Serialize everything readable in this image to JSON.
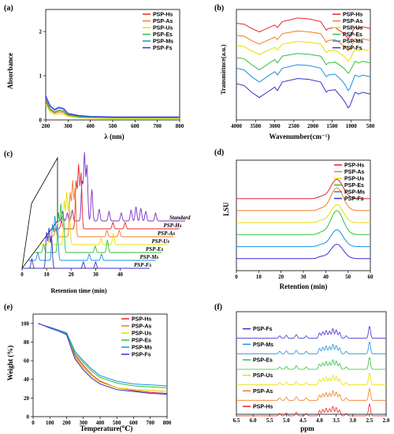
{
  "colors": {
    "PSP-Hs": "#e8232a",
    "PSP-As": "#f47b20",
    "PSP-Us": "#e5e000",
    "PSP-Es": "#2ec23a",
    "PSP-Ms": "#1a8fe0",
    "PSP-Fs": "#3b2fd0"
  },
  "chart_data": [
    {
      "panel": "(a)",
      "type": "line",
      "xlabel": "λ (nm)",
      "ylabel": "Absorbance",
      "xlim": [
        200,
        800
      ],
      "ylim": [
        0,
        2.5
      ],
      "x_ticks": [
        "200",
        "300",
        "400",
        "500",
        "600",
        "700",
        "800"
      ],
      "y_ticks": [
        "0",
        "1",
        "2"
      ],
      "legend": [
        "PSP-Hs",
        "PSP-As",
        "PSP-Us",
        "PSP-Es",
        "PSP-Ms",
        "PSP-Fs"
      ],
      "x": [
        200,
        220,
        240,
        260,
        280,
        300,
        350,
        400,
        500,
        600,
        700,
        800
      ],
      "series": [
        {
          "name": "PSP-Hs",
          "values": [
            0.45,
            0.25,
            0.18,
            0.22,
            0.2,
            0.12,
            0.08,
            0.06,
            0.05,
            0.05,
            0.05,
            0.05
          ]
        },
        {
          "name": "PSP-As",
          "values": [
            0.4,
            0.22,
            0.15,
            0.18,
            0.16,
            0.1,
            0.06,
            0.05,
            0.04,
            0.04,
            0.04,
            0.04
          ]
        },
        {
          "name": "PSP-Us",
          "values": [
            0.35,
            0.18,
            0.12,
            0.14,
            0.13,
            0.08,
            0.05,
            0.04,
            0.03,
            0.03,
            0.03,
            0.03
          ]
        },
        {
          "name": "PSP-Es",
          "values": [
            0.42,
            0.24,
            0.17,
            0.21,
            0.19,
            0.11,
            0.07,
            0.06,
            0.05,
            0.05,
            0.05,
            0.05
          ]
        },
        {
          "name": "PSP-Ms",
          "values": [
            0.5,
            0.3,
            0.22,
            0.27,
            0.24,
            0.14,
            0.09,
            0.07,
            0.06,
            0.06,
            0.06,
            0.06
          ]
        },
        {
          "name": "PSP-Fs",
          "values": [
            0.55,
            0.32,
            0.24,
            0.29,
            0.26,
            0.15,
            0.1,
            0.08,
            0.07,
            0.07,
            0.07,
            0.07
          ]
        }
      ]
    },
    {
      "panel": "(b)",
      "type": "line",
      "xlabel": "Wavenumber(cm⁻¹)",
      "ylabel": "Transmittnce(a.u.)",
      "xlim": [
        4000,
        500
      ],
      "x_ticks": [
        "4000",
        "3500",
        "3000",
        "2500",
        "2000",
        "1500",
        "1000",
        "500"
      ],
      "legend": [
        "PSP-Hs",
        "PSP-As",
        "PSP-Us",
        "PSP-Es",
        "PSP-Ms",
        "PSP-Fs"
      ],
      "x": [
        4000,
        3800,
        3600,
        3400,
        3200,
        3000,
        2930,
        2800,
        2400,
        2100,
        1800,
        1650,
        1600,
        1420,
        1250,
        1150,
        1080,
        1040,
        900,
        800,
        700,
        500
      ],
      "series": [
        {
          "name": "PSP-Hs",
          "values": [
            5.6,
            5.55,
            5.3,
            5.1,
            5.3,
            5.5,
            5.35,
            5.7,
            5.9,
            5.85,
            5.7,
            5.2,
            5.3,
            5.35,
            5.1,
            4.9,
            4.7,
            4.8,
            5.4,
            5.3,
            5.4,
            5.3
          ]
        },
        {
          "name": "PSP-As",
          "values": [
            4.9,
            4.85,
            4.6,
            4.4,
            4.6,
            4.8,
            4.65,
            5.0,
            5.15,
            5.1,
            5.0,
            4.5,
            4.6,
            4.65,
            4.4,
            4.2,
            4.0,
            4.1,
            4.7,
            4.6,
            4.7,
            4.6
          ]
        },
        {
          "name": "PSP-Us",
          "values": [
            4.3,
            4.25,
            4.0,
            3.8,
            4.0,
            4.2,
            4.05,
            4.4,
            4.55,
            4.5,
            4.4,
            3.9,
            4.0,
            4.05,
            3.8,
            3.6,
            3.4,
            3.5,
            4.1,
            4.0,
            4.1,
            4.0
          ]
        },
        {
          "name": "PSP-Es",
          "values": [
            3.6,
            3.55,
            3.2,
            2.9,
            3.2,
            3.5,
            3.3,
            3.7,
            3.85,
            3.8,
            3.7,
            3.2,
            3.3,
            3.35,
            3.1,
            2.9,
            2.7,
            2.8,
            3.4,
            3.3,
            3.4,
            3.3
          ]
        },
        {
          "name": "PSP-Ms",
          "values": [
            3.0,
            2.9,
            2.5,
            2.2,
            2.5,
            2.8,
            2.6,
            3.0,
            3.2,
            3.15,
            3.0,
            2.5,
            2.6,
            2.65,
            2.3,
            2.0,
            1.7,
            1.8,
            2.6,
            2.5,
            2.6,
            2.5
          ]
        },
        {
          "name": "PSP-Fs",
          "values": [
            2.1,
            2.0,
            1.6,
            1.3,
            1.6,
            1.9,
            1.7,
            2.2,
            2.4,
            2.35,
            2.2,
            1.6,
            1.7,
            1.75,
            1.3,
            1.0,
            0.7,
            0.8,
            1.6,
            1.5,
            1.6,
            1.5
          ]
        }
      ]
    },
    {
      "panel": "(c)",
      "type": "line",
      "xlabel": "Retention time (min)",
      "xlim": [
        0,
        45
      ],
      "x_ticks": [
        "0",
        "10",
        "20",
        "30",
        "40"
      ],
      "trace_labels": [
        "Standard",
        "PSP-Hs",
        "PSP-As",
        "PSP-Us",
        "PSP-Es",
        "PSP-Ms",
        "PSP-Fs"
      ],
      "trace_colors": [
        "#7a2fc0",
        "#e8232a",
        "#f47b20",
        "#e5e000",
        "#2ec23a",
        "#1a8fe0",
        "#3b2fd0"
      ],
      "peaks": [
        {
          "trace": "Standard",
          "positions_min": [
            2,
            4,
            6,
            10,
            11,
            12,
            14,
            17,
            21,
            26,
            30,
            32,
            34,
            36,
            40
          ],
          "heights": [
            12,
            10,
            14,
            50,
            85,
            70,
            40,
            15,
            12,
            10,
            14,
            18,
            16,
            12,
            10
          ]
        },
        {
          "trace": "PSP-Hs",
          "positions_min": [
            4,
            10,
            11,
            12,
            25,
            30
          ],
          "heights": [
            10,
            60,
            80,
            70,
            8,
            8
          ]
        },
        {
          "trace": "PSP-As",
          "positions_min": [
            4,
            10,
            11,
            12,
            25,
            30
          ],
          "heights": [
            10,
            55,
            70,
            60,
            8,
            8
          ]
        },
        {
          "trace": "PSP-Us",
          "positions_min": [
            4,
            10,
            11,
            12,
            25,
            30
          ],
          "heights": [
            10,
            55,
            65,
            55,
            8,
            14
          ]
        },
        {
          "trace": "PSP-Es",
          "positions_min": [
            4,
            10,
            11,
            12,
            25,
            30
          ],
          "heights": [
            10,
            50,
            60,
            50,
            8,
            16
          ]
        },
        {
          "trace": "PSP-Ms",
          "positions_min": [
            4,
            10,
            11,
            12,
            25,
            30
          ],
          "heights": [
            10,
            45,
            55,
            45,
            8,
            8
          ]
        },
        {
          "trace": "PSP-Fs",
          "positions_min": [
            4,
            10,
            11,
            12,
            25,
            30
          ],
          "heights": [
            12,
            45,
            50,
            40,
            8,
            8
          ]
        }
      ]
    },
    {
      "panel": "(d)",
      "type": "line",
      "xlabel": "Retention (min)",
      "ylabel": "LSU",
      "xlim": [
        0,
        60
      ],
      "x_ticks": [
        "0",
        "10",
        "20",
        "30",
        "40",
        "50",
        "60"
      ],
      "legend": [
        "PSP-Hs",
        "PSP-As",
        "PSP-Us",
        "PSP-Es",
        "PSP-Ms",
        "PSP-Fs"
      ],
      "peak_center_min": 45,
      "baseline_offsets": [
        6,
        5,
        4,
        3,
        2,
        1
      ],
      "peak_heights": [
        1.6,
        1.9,
        1.5,
        2.0,
        1.4,
        1.2
      ]
    },
    {
      "panel": "(e)",
      "type": "line",
      "xlabel": "Temperature(℃)",
      "ylabel": "Weight (%)",
      "xlim": [
        0,
        800
      ],
      "ylim": [
        0,
        110
      ],
      "x_ticks": [
        "0",
        "100",
        "200",
        "300",
        "400",
        "500",
        "600",
        "700",
        "800"
      ],
      "y_ticks": [
        "0",
        "20",
        "40",
        "60",
        "80",
        "100"
      ],
      "legend": [
        "PSP-Hs",
        "PSP-As",
        "PSP-Us",
        "PSP-Es",
        "PSP-Ms",
        "PSP-Fs"
      ],
      "x": [
        30,
        60,
        100,
        150,
        200,
        230,
        250,
        300,
        350,
        400,
        500,
        600,
        700,
        800
      ],
      "series": [
        {
          "name": "PSP-Hs",
          "values": [
            100,
            98,
            95,
            92,
            88,
            75,
            66,
            55,
            45,
            38,
            31,
            28,
            26,
            25
          ]
        },
        {
          "name": "PSP-As",
          "values": [
            100,
            98,
            95,
            92,
            88,
            74,
            64,
            53,
            43,
            37,
            31,
            29,
            28,
            27
          ]
        },
        {
          "name": "PSP-Us",
          "values": [
            100,
            98,
            95,
            92,
            88,
            73,
            63,
            52,
            43,
            37,
            31,
            29,
            28,
            27
          ]
        },
        {
          "name": "PSP-Es",
          "values": [
            100,
            98,
            95,
            92,
            89,
            76,
            68,
            58,
            49,
            42,
            36,
            33,
            32,
            31
          ]
        },
        {
          "name": "PSP-Ms",
          "values": [
            100,
            98,
            96,
            93,
            90,
            78,
            70,
            60,
            51,
            44,
            38,
            35,
            34,
            33
          ]
        },
        {
          "name": "PSP-Fs",
          "values": [
            100,
            98,
            95,
            92,
            88,
            72,
            62,
            50,
            41,
            35,
            29,
            27,
            25,
            24
          ]
        }
      ]
    },
    {
      "panel": "(f)",
      "type": "line",
      "xlabel": "ppm",
      "xlim": [
        6.5,
        2.0
      ],
      "x_ticks": [
        "6.5",
        "6.0",
        "5.5",
        "5.0",
        "4.5",
        "4.0",
        "3.5",
        "3.0",
        "2.5",
        "2.0"
      ],
      "legend_order_top_to_bottom": [
        "PSP-Fs",
        "PSP-Ms",
        "PSP-Es",
        "PSP-Us",
        "PSP-As",
        "PSP-Hs"
      ],
      "peaks_ppm": [
        5.2,
        5.0,
        4.7,
        4.4,
        4.0,
        3.9,
        3.8,
        3.7,
        3.6,
        3.5,
        3.4,
        3.2,
        2.5
      ],
      "peak_heights": [
        0.2,
        0.25,
        0.3,
        0.2,
        0.45,
        0.55,
        0.65,
        0.6,
        0.8,
        0.7,
        0.5,
        0.2,
        1.0
      ]
    }
  ]
}
